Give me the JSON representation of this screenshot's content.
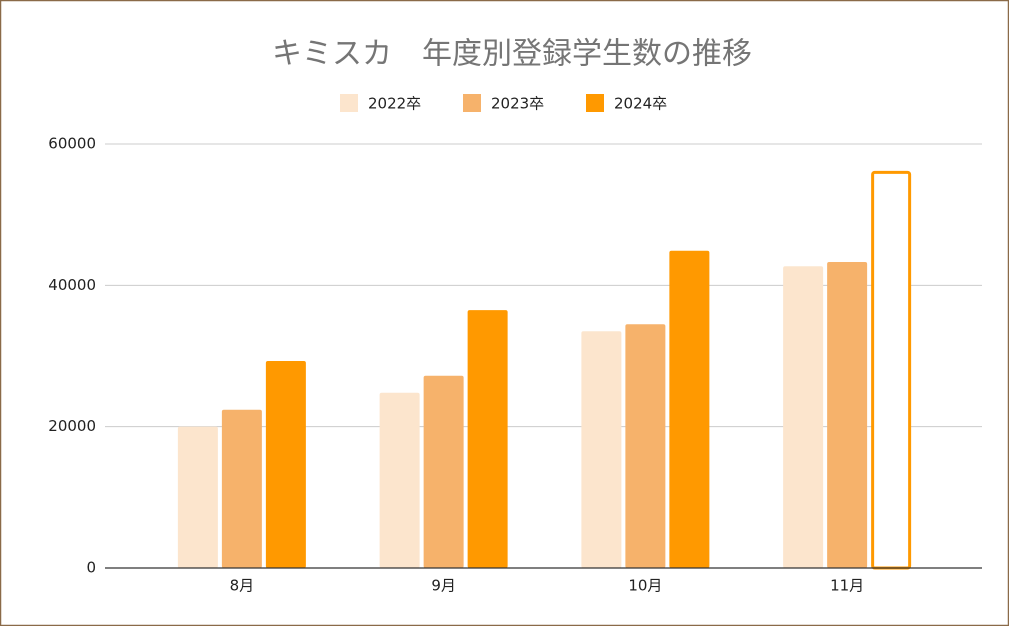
{
  "chart_data": {
    "type": "bar",
    "title": "キミスカ　年度別登録学生数の推移",
    "categories": [
      "8月",
      "9月",
      "10月",
      "11月"
    ],
    "series": [
      {
        "name": "2022卒",
        "color": "#fce5cd",
        "values": [
          20000,
          24800,
          33500,
          42700
        ]
      },
      {
        "name": "2023卒",
        "color": "#f6b26b",
        "values": [
          22400,
          27200,
          34500,
          43300
        ]
      },
      {
        "name": "2024卒",
        "color": "#ff9900",
        "values": [
          29300,
          36500,
          44900,
          56200
        ],
        "point_styles": [
          "fill",
          "fill",
          "fill",
          "outline"
        ]
      }
    ],
    "ylim": [
      0,
      60000
    ],
    "yticks": [
      0,
      20000,
      40000,
      60000
    ],
    "grid": true,
    "legend": "top"
  }
}
